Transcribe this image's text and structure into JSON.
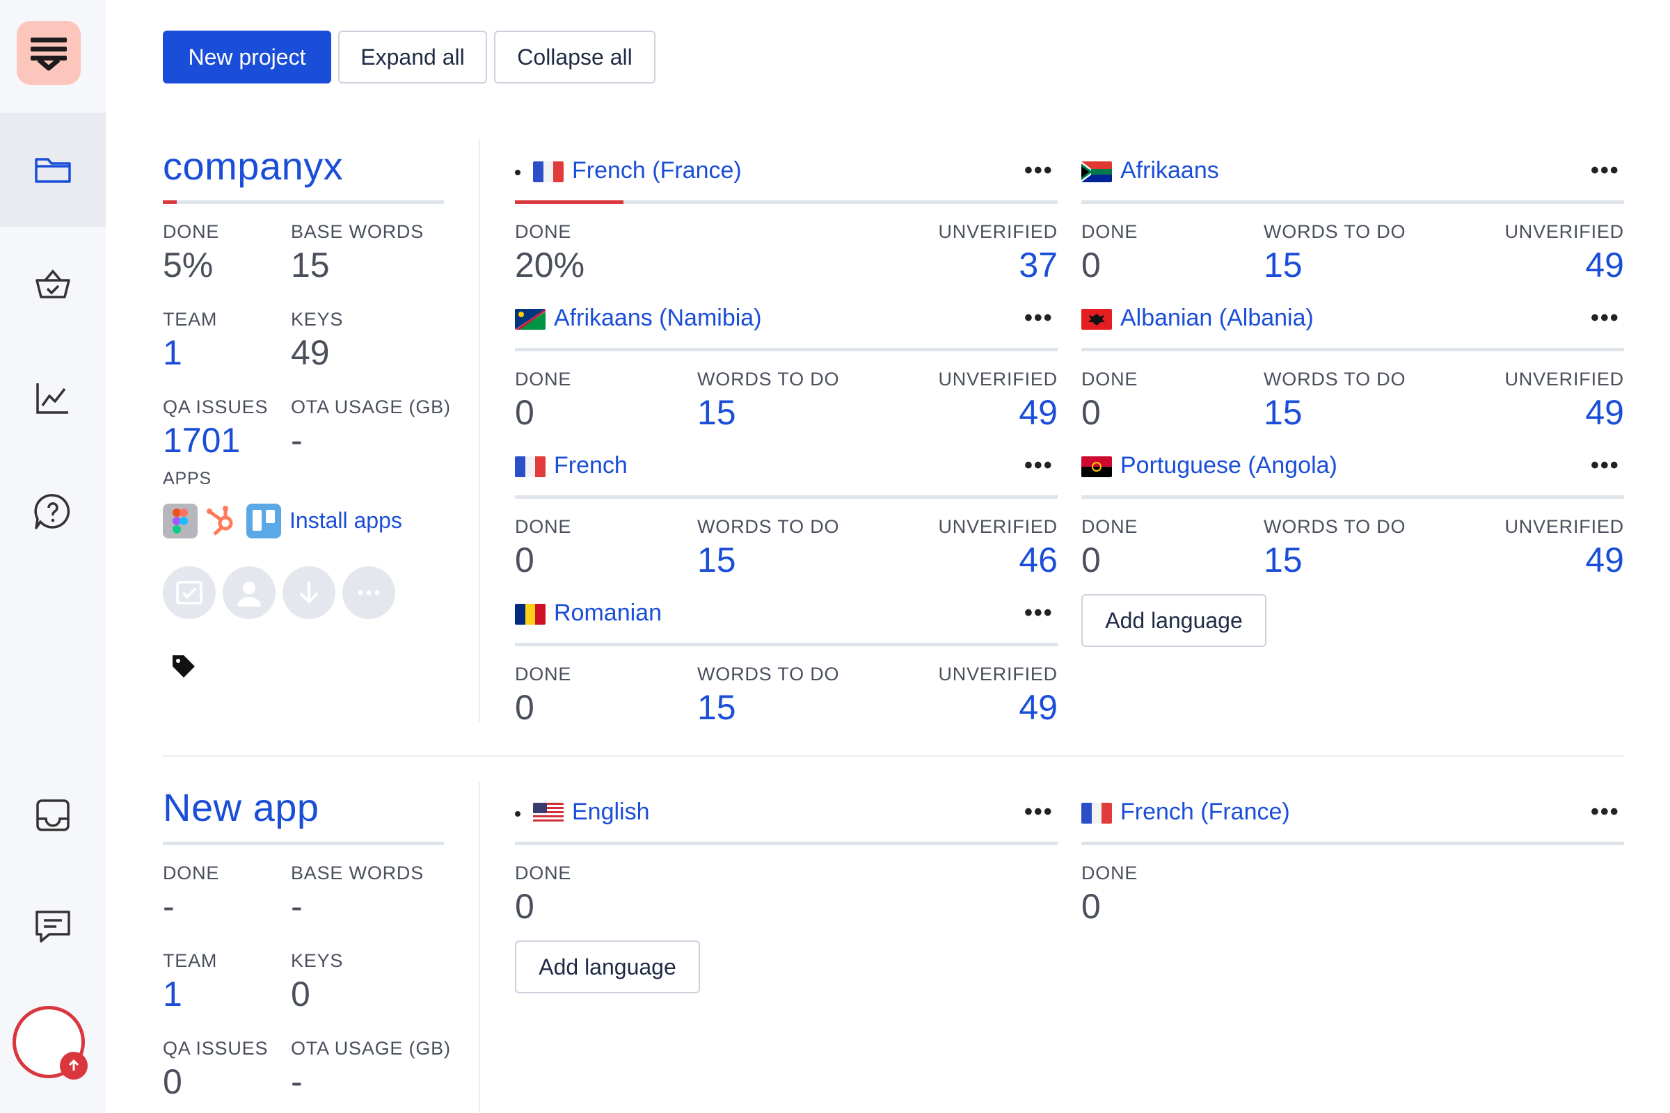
{
  "toolbar": {
    "new_project": "New project",
    "expand_all": "Expand all",
    "collapse_all": "Collapse all"
  },
  "projects": [
    {
      "name": "companyx",
      "progress_percent": 5,
      "done_label": "DONE",
      "done": "5%",
      "base_words_label": "BASE WORDS",
      "base_words": "15",
      "team_label": "TEAM",
      "team": "1",
      "keys_label": "KEYS",
      "keys": "49",
      "qa_issues_label": "QA ISSUES",
      "qa_issues": "1701",
      "ota_label": "OTA USAGE (GB)",
      "ota": "-",
      "apps_label": "APPS",
      "install_apps": "Install apps",
      "languages": [
        {
          "name": "French (France)",
          "flag": "fr",
          "base": true,
          "progress_percent": 20,
          "done": "20%",
          "words_to_do": "",
          "unverified": "37"
        },
        {
          "name": "Afrikaans",
          "flag": "za",
          "done": "0",
          "words_to_do": "15",
          "unverified": "49"
        },
        {
          "name": "Afrikaans (Namibia)",
          "flag": "na",
          "done": "0",
          "words_to_do": "15",
          "unverified": "49"
        },
        {
          "name": "Albanian (Albania)",
          "flag": "al",
          "done": "0",
          "words_to_do": "15",
          "unverified": "49"
        },
        {
          "name": "French",
          "flag": "fr",
          "done": "0",
          "words_to_do": "15",
          "unverified": "46"
        },
        {
          "name": "Portuguese (Angola)",
          "flag": "ao",
          "done": "0",
          "words_to_do": "15",
          "unverified": "49"
        },
        {
          "name": "Romanian",
          "flag": "ro",
          "done": "0",
          "words_to_do": "15",
          "unverified": "49"
        }
      ],
      "add_language": "Add language"
    },
    {
      "name": "New app",
      "done_label": "DONE",
      "done": "-",
      "base_words_label": "BASE WORDS",
      "base_words": "-",
      "team_label": "TEAM",
      "team": "1",
      "keys_label": "KEYS",
      "keys": "0",
      "qa_issues_label": "QA ISSUES",
      "qa_issues": "0",
      "ota_label": "OTA USAGE (GB)",
      "ota": "-",
      "languages": [
        {
          "name": "English",
          "flag": "us",
          "base": true,
          "done": "0"
        },
        {
          "name": "French (France)",
          "flag": "fr",
          "done": "0"
        }
      ],
      "add_language": "Add language"
    }
  ],
  "labels": {
    "done": "DONE",
    "words_to_do": "WORDS TO DO",
    "unverified": "UNVERIFIED",
    "more": "•••"
  },
  "colors": {
    "accent": "#1a4ed8",
    "progress": "#d9363e",
    "logo_bg": "#fcc6bd"
  }
}
